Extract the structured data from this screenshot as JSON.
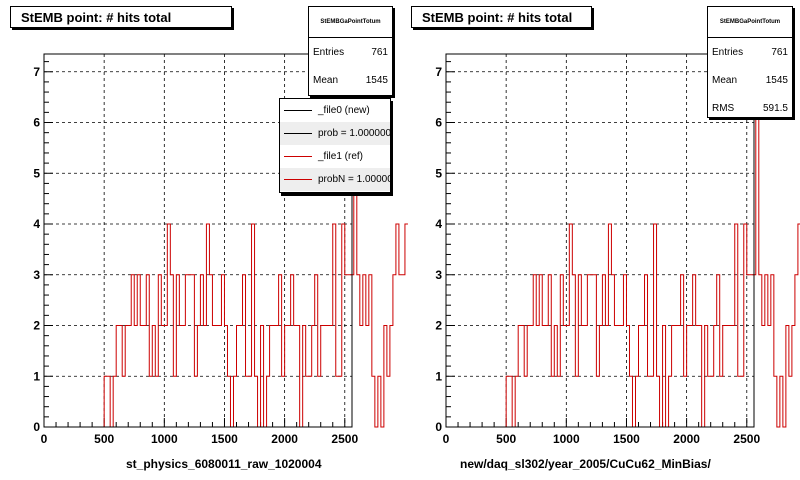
{
  "chart_data": [
    {
      "type": "histogram",
      "title": "StEMB point: # hits total",
      "xlabel": "st_physics_6080011_raw_1020004",
      "ylabel": "",
      "xlim": [
        0,
        2560
      ],
      "ylim": [
        0,
        7.35
      ],
      "xticks": [
        "0",
        "500",
        "1000",
        "1500",
        "2000",
        "2500"
      ],
      "yticks": [
        "0",
        "1",
        "2",
        "3",
        "4",
        "5",
        "6",
        "7"
      ],
      "grid": true,
      "stats": {
        "name": "StEMBGaPointTotum",
        "entries": "761",
        "mean": "1545"
      },
      "legend": {
        "position": "top-right",
        "entries": [
          {
            "label": "_file0 (new)",
            "color": "#000000"
          },
          {
            "label": "prob = 1.000000",
            "color": "#000000"
          },
          {
            "label": "_file1 (ref)",
            "color": "#cc0000"
          },
          {
            "label": "probN = 1.000000",
            "color": "#cc0000"
          }
        ]
      },
      "series": [
        {
          "color": "#cc0000",
          "bin_width": 25,
          "x_start": 0,
          "values": [
            0,
            0,
            0,
            0,
            0,
            0,
            0,
            0,
            0,
            0,
            0,
            0,
            0,
            0,
            0,
            0,
            0,
            0,
            0,
            0,
            1,
            1,
            0,
            1,
            2,
            2,
            1,
            2,
            2,
            3,
            2,
            3,
            2,
            2,
            3,
            1,
            2,
            1,
            3,
            2,
            2,
            4,
            3,
            1,
            3,
            2,
            2,
            3,
            3,
            3,
            1,
            2,
            3,
            2,
            4,
            3,
            2,
            2,
            2,
            3,
            2,
            1,
            0,
            1,
            2,
            2,
            3,
            1,
            1,
            4,
            1,
            0,
            2,
            0,
            1,
            2,
            2,
            2,
            3,
            1,
            2,
            2,
            3,
            2,
            2,
            0,
            2,
            1,
            1,
            2,
            3,
            1,
            2,
            2,
            2,
            2,
            4,
            1,
            1,
            4,
            3,
            3,
            3,
            7,
            3,
            2,
            3,
            2,
            3,
            1,
            0,
            1,
            0,
            2,
            1,
            2,
            3,
            4,
            3,
            3,
            4
          ]
        }
      ]
    },
    {
      "type": "histogram",
      "title": "StEMB point: # hits total",
      "xlabel": "new/daq_sl302/year_2005/CuCu62_MinBias/",
      "ylabel": "",
      "xlim": [
        0,
        2560
      ],
      "ylim": [
        0,
        7.35
      ],
      "xticks": [
        "0",
        "500",
        "1000",
        "1500",
        "2000",
        "2500"
      ],
      "yticks": [
        "0",
        "1",
        "2",
        "3",
        "4",
        "5",
        "6",
        "7"
      ],
      "grid": true,
      "stats": {
        "name": "StEMBGaPointTotum",
        "entries": "761",
        "mean": "1545",
        "rms": "591.5"
      },
      "series": [
        {
          "color": "#cc0000",
          "bin_width": 25,
          "x_start": 0,
          "values": [
            0,
            0,
            0,
            0,
            0,
            0,
            0,
            0,
            0,
            0,
            0,
            0,
            0,
            0,
            0,
            0,
            0,
            0,
            0,
            0,
            1,
            1,
            0,
            1,
            2,
            2,
            1,
            2,
            2,
            3,
            2,
            3,
            2,
            2,
            3,
            1,
            2,
            1,
            3,
            2,
            2,
            4,
            3,
            1,
            3,
            2,
            2,
            3,
            3,
            3,
            1,
            2,
            3,
            2,
            4,
            3,
            2,
            2,
            2,
            3,
            2,
            1,
            0,
            1,
            2,
            2,
            3,
            1,
            1,
            4,
            1,
            0,
            2,
            0,
            1,
            2,
            2,
            2,
            3,
            1,
            2,
            2,
            3,
            2,
            2,
            0,
            2,
            1,
            1,
            2,
            3,
            1,
            2,
            2,
            2,
            2,
            4,
            1,
            1,
            4,
            3,
            3,
            3,
            7,
            3,
            2,
            3,
            2,
            3,
            1,
            0,
            1,
            0,
            2,
            1,
            2,
            3,
            4,
            3,
            3,
            4
          ]
        }
      ]
    }
  ],
  "labels": {
    "entries": "Entries",
    "mean": "Mean",
    "rms": "RMS"
  }
}
